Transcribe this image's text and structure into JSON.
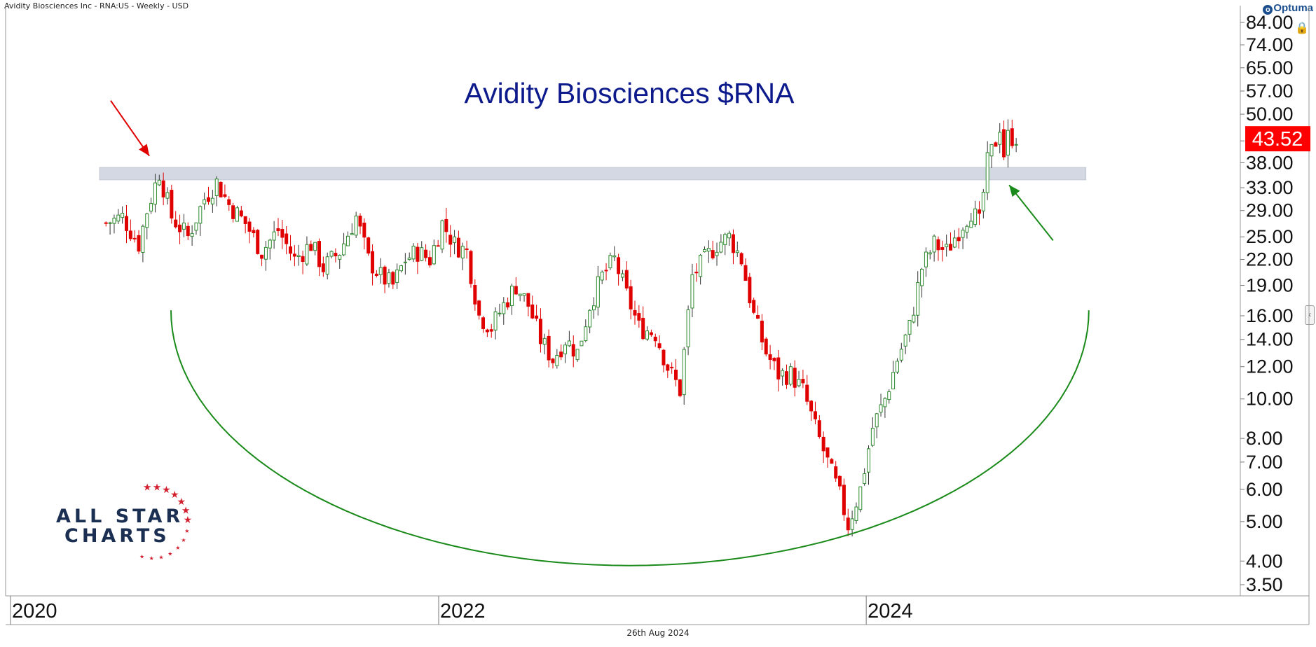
{
  "header": {
    "instrument_line": "Avidity Biosciences Inc - RNA:US - Weekly - USD"
  },
  "branding": {
    "provider": "Optuma",
    "watermark_line1": "ALL STAR",
    "watermark_line2": "CHARTS"
  },
  "footer": {
    "date": "26th Aug 2024"
  },
  "chart_data": {
    "type": "candlestick",
    "title": "Avidity Biosciences $RNA",
    "y_scale": "log",
    "ylim": [
      3.3,
      86
    ],
    "y_ticks": [
      "84.00",
      "74.00",
      "65.00",
      "57.00",
      "50.00",
      "43.00",
      "38.00",
      "33.00",
      "29.00",
      "25.00",
      "22.00",
      "19.00",
      "16.00",
      "14.00",
      "12.00",
      "10.00",
      "8.00",
      "7.00",
      "6.00",
      "5.00",
      "4.00",
      "3.50"
    ],
    "y_tick_values": [
      84,
      74,
      65,
      57,
      50,
      43,
      38,
      33,
      29,
      25,
      22,
      19,
      16,
      14,
      12,
      10,
      8,
      7,
      6,
      5,
      4,
      3.5
    ],
    "x_ticks": [
      {
        "label": "2020",
        "date": "2020-01-01"
      },
      {
        "label": "2022",
        "date": "2022-01-01"
      },
      {
        "label": "2024",
        "date": "2024-01-01"
      }
    ],
    "xlim": [
      "2020-01-01",
      "2025-02-15"
    ],
    "last_price": "43.52",
    "last_price_value": 43.52,
    "up_color": "#2e8b2e",
    "down_color": "#e00000",
    "resistance_zone": {
      "low": 34.5,
      "high": 37,
      "from": "2020-06-01",
      "to": "2025-01-10",
      "color": "#d4d8e2"
    },
    "cup_arc": {
      "from_date": "2020-10-01",
      "from_price": 16.5,
      "bottom_date": "2022-12-10",
      "bottom_price": 3.9,
      "to_date": "2025-01-15",
      "to_price": 16.5,
      "color": "#1a8a1a"
    },
    "annotations": [
      {
        "type": "arrow",
        "color": "#e00000",
        "from_date": "2020-06-20",
        "from_price": 54,
        "to_date": "2020-08-25",
        "to_price": 39.5
      },
      {
        "type": "arrow",
        "color": "#1a8a1a",
        "from_date": "2024-11-15",
        "from_price": 24.5,
        "to_date": "2024-09-01",
        "to_price": 33.5
      }
    ],
    "path_points": [
      [
        "2020-06-12",
        27
      ],
      [
        "2020-07-10",
        28
      ],
      [
        "2020-08-07",
        24
      ],
      [
        "2020-08-21",
        29
      ],
      [
        "2020-09-11",
        36
      ],
      [
        "2020-10-02",
        28
      ],
      [
        "2020-10-30",
        25
      ],
      [
        "2020-11-27",
        31
      ],
      [
        "2020-12-18",
        34
      ],
      [
        "2021-01-08",
        30
      ],
      [
        "2021-02-05",
        27
      ],
      [
        "2021-03-05",
        23
      ],
      [
        "2021-04-02",
        26
      ],
      [
        "2021-04-30",
        22
      ],
      [
        "2021-05-28",
        24
      ],
      [
        "2021-06-18",
        21
      ],
      [
        "2021-07-16",
        23
      ],
      [
        "2021-08-13",
        28
      ],
      [
        "2021-09-03",
        22
      ],
      [
        "2021-09-24",
        20
      ],
      [
        "2021-10-15",
        19
      ],
      [
        "2021-11-05",
        22
      ],
      [
        "2021-11-26",
        23
      ],
      [
        "2021-12-17",
        22
      ],
      [
        "2022-01-07",
        27
      ],
      [
        "2022-01-28",
        24
      ],
      [
        "2022-02-18",
        23
      ],
      [
        "2022-03-11",
        16
      ],
      [
        "2022-04-01",
        15
      ],
      [
        "2022-04-22",
        17
      ],
      [
        "2022-05-13",
        19
      ],
      [
        "2022-06-03",
        17
      ],
      [
        "2022-06-24",
        14
      ],
      [
        "2022-07-15",
        12.5
      ],
      [
        "2022-08-05",
        14
      ],
      [
        "2022-08-26",
        13
      ],
      [
        "2022-09-16",
        17
      ],
      [
        "2022-10-07",
        20
      ],
      [
        "2022-10-28",
        22
      ],
      [
        "2022-11-18",
        18
      ],
      [
        "2022-12-09",
        15
      ],
      [
        "2023-01-06",
        14.5
      ],
      [
        "2023-01-27",
        12
      ],
      [
        "2023-02-17",
        10.5
      ],
      [
        "2023-03-10",
        20
      ],
      [
        "2023-03-31",
        22
      ],
      [
        "2023-04-21",
        24
      ],
      [
        "2023-05-12",
        25
      ],
      [
        "2023-06-02",
        22
      ],
      [
        "2023-06-23",
        16
      ],
      [
        "2023-07-14",
        13
      ],
      [
        "2023-08-04",
        11.5
      ],
      [
        "2023-08-25",
        11.5
      ],
      [
        "2023-09-15",
        10.5
      ],
      [
        "2023-10-06",
        8.5
      ],
      [
        "2023-10-27",
        7
      ],
      [
        "2023-11-17",
        5.8
      ],
      [
        "2023-12-01",
        4.9
      ],
      [
        "2023-12-22",
        6
      ],
      [
        "2024-01-12",
        8.5
      ],
      [
        "2024-02-02",
        10
      ],
      [
        "2024-02-23",
        12.5
      ],
      [
        "2024-03-15",
        15
      ],
      [
        "2024-04-05",
        21
      ],
      [
        "2024-04-26",
        24
      ],
      [
        "2024-05-17",
        23
      ],
      [
        "2024-06-07",
        26
      ],
      [
        "2024-06-28",
        29
      ],
      [
        "2024-07-12",
        27
      ],
      [
        "2024-07-26",
        38
      ],
      [
        "2024-08-09",
        43
      ],
      [
        "2024-08-16",
        47
      ],
      [
        "2024-08-23",
        40
      ],
      [
        "2024-08-30",
        44
      ],
      [
        "2024-09-13",
        44
      ]
    ]
  }
}
